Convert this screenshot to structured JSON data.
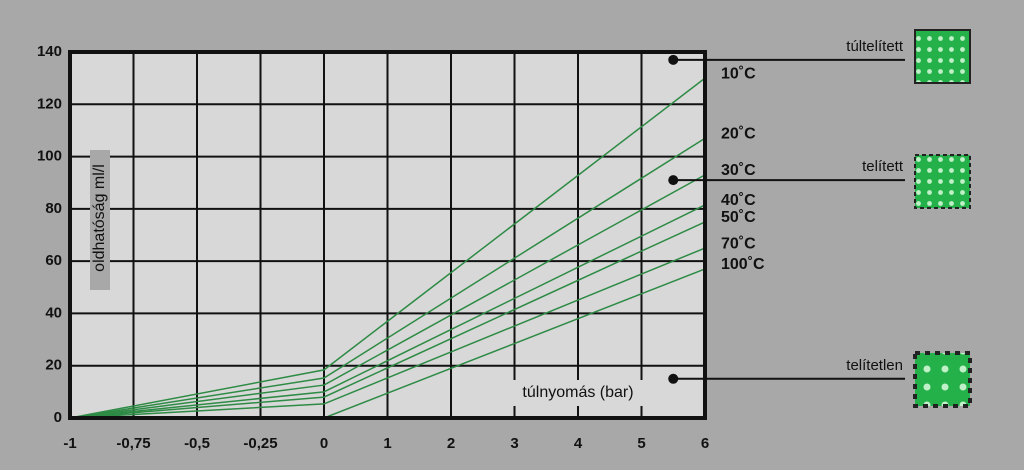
{
  "chart_data": {
    "type": "line",
    "y_label": "oldhatóság ml/l",
    "x_label": "túlnyomás (bar)",
    "x": [
      -1,
      0,
      6
    ],
    "xlim": [
      -1,
      6
    ],
    "xticks": [
      {
        "value": -1,
        "label": "-1"
      },
      {
        "value": -0.75,
        "label": "-0,75"
      },
      {
        "value": -0.5,
        "label": "-0,5"
      },
      {
        "value": -0.25,
        "label": "-0,25"
      },
      0,
      1,
      2,
      3,
      4,
      5,
      6
    ],
    "ylim": [
      0,
      140
    ],
    "yticks": [
      0,
      20,
      40,
      60,
      80,
      100,
      120,
      140
    ],
    "grid": true,
    "series": [
      {
        "name": "10˚C",
        "color": "#2e8b45",
        "values": [
          0,
          18.4,
          130
        ]
      },
      {
        "name": "20˚C",
        "color": "#2e8b45",
        "values": [
          0,
          15.3,
          107
        ]
      },
      {
        "name": "30˚C",
        "color": "#2e8b45",
        "values": [
          0,
          12.6,
          93
        ]
      },
      {
        "name": "40˚C",
        "color": "#2e8b45",
        "values": [
          0,
          10,
          81.5
        ]
      },
      {
        "name": "50˚C",
        "color": "#2e8b45",
        "values": [
          0,
          8,
          75
        ]
      },
      {
        "name": "70˚C",
        "color": "#2e8b45",
        "values": [
          0,
          5.4,
          65
        ]
      },
      {
        "name": "100˚C",
        "color": "#2e8b45",
        "values": [
          0,
          0,
          57
        ]
      }
    ],
    "annotations": [
      {
        "text": "túltelített",
        "x": 5.5,
        "y": 137
      },
      {
        "text": "telített",
        "x": 5.5,
        "y": 91
      },
      {
        "text": "telítetlen",
        "x": 5.5,
        "y": 15
      }
    ]
  }
}
